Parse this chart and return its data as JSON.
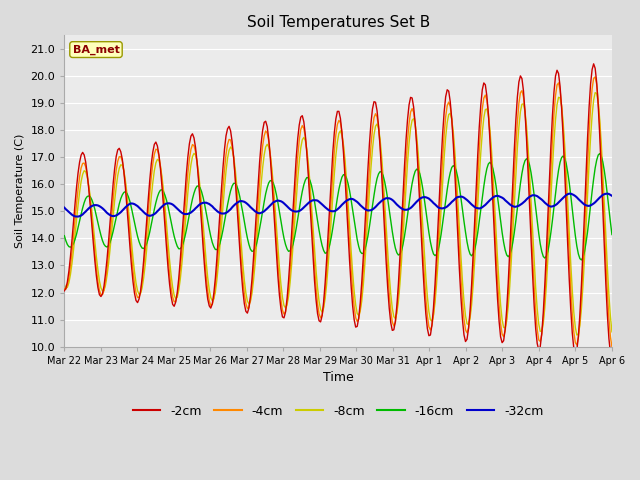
{
  "title": "Soil Temperatures Set B",
  "xlabel": "Time",
  "ylabel": "Soil Temperature (C)",
  "annotation": "BA_met",
  "ylim": [
    10.0,
    21.5
  ],
  "yticks": [
    10.0,
    11.0,
    12.0,
    13.0,
    14.0,
    15.0,
    16.0,
    17.0,
    18.0,
    19.0,
    20.0,
    21.0
  ],
  "fig_bg": "#dcdcdc",
  "ax_bg": "#ebebeb",
  "colors": {
    "-2cm": "#cc0000",
    "-4cm": "#ff8800",
    "-8cm": "#cccc00",
    "-16cm": "#00bb00",
    "-32cm": "#0000cc"
  },
  "x_dates": [
    "Mar 22",
    "Mar 23",
    "Mar 24",
    "Mar 25",
    "Mar 26",
    "Mar 27",
    "Mar 28",
    "Mar 29",
    "Mar 30",
    "Mar 31",
    "Apr 1",
    "Apr 2",
    "Apr 3",
    "Apr 4",
    "Apr 5",
    "Apr 6"
  ],
  "days": 15,
  "n_points": 360
}
